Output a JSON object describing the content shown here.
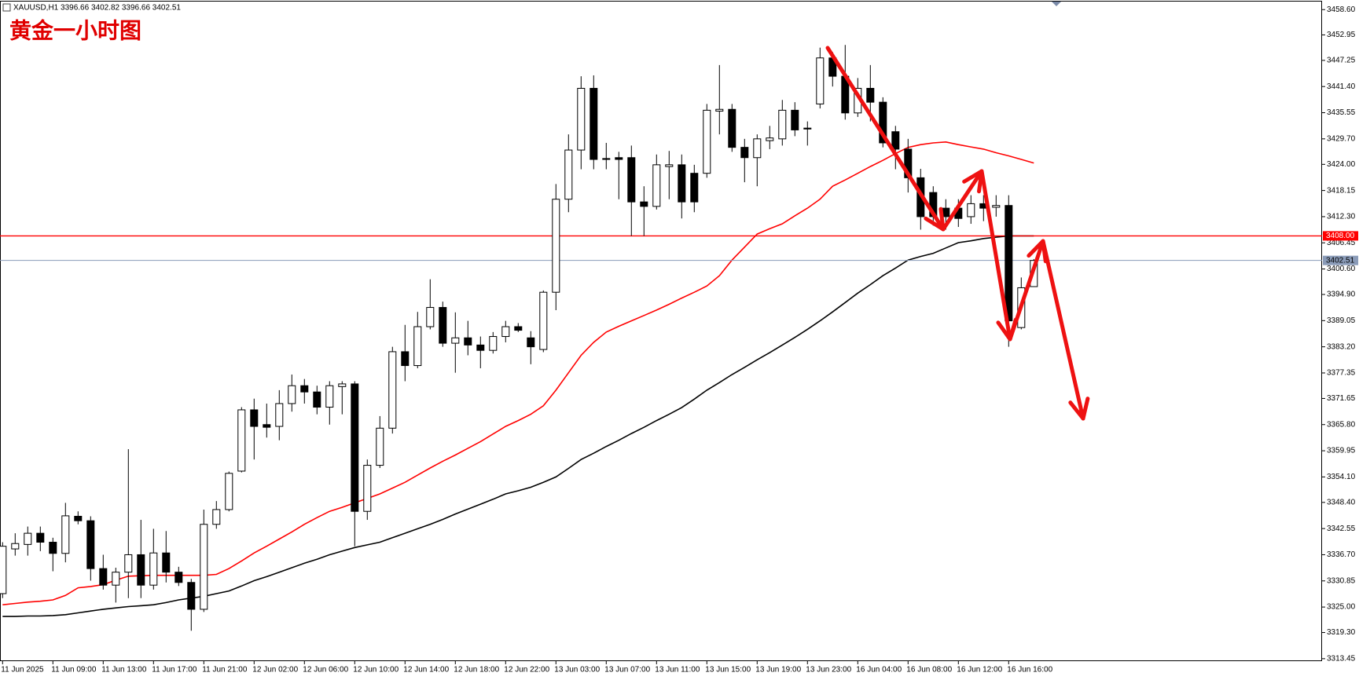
{
  "chart_data": {
    "type": "candlestick",
    "title": "黄金一小时图",
    "subtitle": "XAUUSD,H1  3396.66 3402.82 3396.66 3402.51",
    "categories": [
      "11 Jun 2025",
      null,
      null,
      null,
      "11 Jun 09:00",
      null,
      null,
      null,
      "11 Jun 13:00",
      null,
      null,
      null,
      "11 Jun 17:00",
      null,
      null,
      null,
      "11 Jun 21:00",
      null,
      null,
      null,
      "12 Jun 02:00",
      null,
      null,
      null,
      "12 Jun 06:00",
      null,
      null,
      null,
      "12 Jun 10:00",
      null,
      null,
      null,
      "12 Jun 14:00",
      null,
      null,
      null,
      "12 Jun 18:00",
      null,
      null,
      null,
      "12 Jun 22:00",
      null,
      null,
      null,
      "13 Jun 03:00",
      null,
      null,
      null,
      "13 Jun 07:00",
      null,
      null,
      null,
      "13 Jun 11:00",
      null,
      null,
      null,
      "13 Jun 15:00",
      null,
      null,
      null,
      "13 Jun 19:00",
      null,
      null,
      null,
      "13 Jun 23:00",
      null,
      null,
      null,
      "16 Jun 04:00",
      null,
      null,
      null,
      "16 Jun 08:00",
      null,
      null,
      null,
      "16 Jun 12:00",
      null,
      null,
      null,
      "16 Jun 16:00",
      null,
      null
    ],
    "open": [
      3328,
      3338,
      3339,
      3341.5,
      3339.5,
      3337,
      3345.3,
      3344.3,
      3333.6,
      3329.9,
      3332.8,
      3336.7,
      3329.9,
      3337.1,
      3332.8,
      3330.5,
      3324.5,
      3343.5,
      3346.8,
      3355.4,
      3369.1,
      3365.8,
      3365.4,
      3370.5,
      3374.5,
      3373.1,
      3369.7,
      3374.3,
      3374.9,
      3346.4,
      3356.7,
      3365,
      3382.1,
      3379,
      3387.7,
      3392,
      3384,
      3385.2,
      3383.6,
      3382.4,
      3385.5,
      3387.7,
      3385.2,
      3382.6,
      3395.4,
      3416.2,
      3427.2,
      3441,
      3425.3,
      3425.5,
      3425.5,
      3415.6,
      3414.6,
      3423.5,
      3423.9,
      3422,
      3422,
      3435.9,
      3436.3,
      3427.8,
      3425.5,
      3429.3,
      3429.7,
      3436.1,
      3432.1,
      3437.5,
      3447.8,
      3443.7,
      3435.5,
      3441,
      3437.9,
      3431.3,
      3427.4,
      3421,
      3417.7,
      3414.2,
      3414.2,
      3412.3,
      3415.2,
      3414.4,
      3414.8,
      3387.5,
      3396.66
    ],
    "high": [
      3339.5,
      3341.5,
      3343,
      3343,
      3340.5,
      3348.3,
      3346.4,
      3345.3,
      3336.7,
      3333.8,
      3360.3,
      3344.5,
      3342.5,
      3342,
      3334,
      3331.3,
      3346.8,
      3348.7,
      3355.3,
      3369.7,
      3371.6,
      3370.5,
      3373.5,
      3377,
      3376,
      3374.5,
      3375.5,
      3375.5,
      3375.5,
      3358,
      3367.7,
      3383.2,
      3388.1,
      3391,
      3398.3,
      3393.3,
      3390.9,
      3389,
      3385.5,
      3386.5,
      3389,
      3388.5,
      3386.7,
      3395.8,
      3419.6,
      3430.7,
      3443.7,
      3443.9,
      3428.8,
      3426.8,
      3428.2,
      3419.1,
      3426.2,
      3427,
      3426.2,
      3423.9,
      3437.5,
      3446.2,
      3437.5,
      3429.7,
      3430.7,
      3432.6,
      3438.4,
      3437.9,
      3433.6,
      3450.1,
      3449.1,
      3450.7,
      3443.3,
      3446.2,
      3439,
      3432.6,
      3429.7,
      3423,
      3419.1,
      3416.2,
      3416.2,
      3417.1,
      3417.1,
      3417.1,
      3417.1,
      3398.7,
      3402.82
    ],
    "low": [
      3327,
      3336.5,
      3336.5,
      3337.5,
      3333,
      3335,
      3343.5,
      3330.9,
      3328.9,
      3326,
      3327,
      3327,
      3328.9,
      3330.5,
      3329.7,
      3319.7,
      3323.9,
      3342.5,
      3346.4,
      3355.1,
      3358,
      3362.9,
      3362.3,
      3368.7,
      3370.5,
      3368.1,
      3365.8,
      3368.1,
      3338.6,
      3344.5,
      3356.1,
      3363.8,
      3375.5,
      3378.4,
      3387.1,
      3383.2,
      3377.4,
      3381.3,
      3378.4,
      3381.7,
      3384.2,
      3386.5,
      3379.3,
      3382,
      3391.4,
      3413.3,
      3422.9,
      3422.9,
      3422.9,
      3416.2,
      3408,
      3408,
      3413.9,
      3416.2,
      3411.9,
      3413.3,
      3421,
      3430.7,
      3426.8,
      3420,
      3419.1,
      3427.4,
      3428.2,
      3430.3,
      3428.2,
      3436.5,
      3441.4,
      3434,
      3434.6,
      3433.6,
      3427.8,
      3422.9,
      3417.7,
      3409.4,
      3410.3,
      3409.4,
      3410,
      3410.7,
      3411.3,
      3412.3,
      3383.2,
      3387.1,
      3396.66
    ],
    "close": [
      3338.6,
      3339.2,
      3341.5,
      3339.5,
      3337,
      3345.4,
      3344.3,
      3333.6,
      3329.9,
      3332.8,
      3336.7,
      3329.9,
      3337.1,
      3332.8,
      3330.5,
      3324.5,
      3343.5,
      3346.8,
      3354.9,
      3369.1,
      3365.4,
      3365.2,
      3370.5,
      3374.5,
      3373.1,
      3369.7,
      3374.5,
      3374.9,
      3346.4,
      3356.7,
      3365,
      3382.1,
      3379,
      3387.7,
      3392,
      3384,
      3385.2,
      3383.6,
      3382.4,
      3385.5,
      3387.7,
      3386.9,
      3383.2,
      3395.4,
      3416.2,
      3427.2,
      3441,
      3425.1,
      3425.1,
      3425.1,
      3415.6,
      3414.6,
      3423.9,
      3423.9,
      3415.6,
      3415.6,
      3436.1,
      3436.3,
      3427.8,
      3425.5,
      3429.7,
      3429.9,
      3436.1,
      3431.7,
      3431.9,
      3447.8,
      3443.7,
      3435.5,
      3441,
      3437.9,
      3428.8,
      3427.4,
      3421,
      3412.3,
      3412.3,
      3412.3,
      3411.9,
      3415.2,
      3414.2,
      3414.8,
      3389,
      3396.4,
      3402.51
    ],
    "up_color": "#ffffff",
    "down_color": "#000000",
    "overlays": [
      {
        "color": "#ff0000",
        "values": [
          3325.5,
          3325.8,
          3326.1,
          3326.3,
          3326.6,
          3327.6,
          3329.3,
          3329.6,
          3330.0,
          3331.0,
          3331.9,
          3332.0,
          3332.1,
          3332.1,
          3332.1,
          3332.1,
          3332.1,
          3332.3,
          3333.6,
          3335.3,
          3337.1,
          3338.6,
          3340.2,
          3341.8,
          3343.5,
          3345.0,
          3346.4,
          3347.3,
          3348.3,
          3349.3,
          3350.3,
          3351.6,
          3352.9,
          3354.5,
          3356.1,
          3357.6,
          3359.0,
          3360.5,
          3362.0,
          3363.7,
          3365.4,
          3366.7,
          3368.1,
          3370.0,
          3373.5,
          3377.4,
          3381.3,
          3384.2,
          3386.5,
          3387.8,
          3389.0,
          3390.2,
          3391.4,
          3392.7,
          3394.1,
          3395.4,
          3396.8,
          3399.1,
          3402.6,
          3405.5,
          3408.4,
          3409.6,
          3410.7,
          3412.5,
          3414.2,
          3416.2,
          3419.1,
          3420.5,
          3422.0,
          3423.5,
          3424.9,
          3426.4,
          3427.8,
          3428.4,
          3428.8,
          3429.0,
          3428.4,
          3427.9,
          3427.4,
          3426.6,
          3425.9,
          3425.1,
          3424.3
        ]
      },
      {
        "color": "#000000",
        "values": [
          3322.9,
          3322.9,
          3323.0,
          3323.0,
          3323.1,
          3323.3,
          3323.7,
          3324.1,
          3324.5,
          3324.8,
          3325.1,
          3325.3,
          3325.5,
          3326.0,
          3326.6,
          3327.0,
          3327.4,
          3328.0,
          3328.6,
          3329.7,
          3330.9,
          3331.8,
          3332.8,
          3333.8,
          3334.8,
          3335.7,
          3336.7,
          3337.5,
          3338.3,
          3338.9,
          3339.5,
          3340.5,
          3341.5,
          3342.5,
          3343.5,
          3344.6,
          3345.8,
          3346.9,
          3348.0,
          3349.1,
          3350.3,
          3351.0,
          3351.8,
          3352.9,
          3354.1,
          3356.0,
          3358.0,
          3359.4,
          3360.9,
          3362.3,
          3363.8,
          3365.2,
          3366.7,
          3368.1,
          3369.6,
          3371.5,
          3373.5,
          3375.2,
          3377.0,
          3378.6,
          3380.3,
          3381.9,
          3383.6,
          3385.3,
          3387.1,
          3389.0,
          3391.0,
          3393.1,
          3395.2,
          3397.1,
          3399.1,
          3400.8,
          3402.6,
          3403.4,
          3404.1,
          3405.3,
          3406.5,
          3406.9,
          3407.4,
          3407.7,
          3408.0,
          3408.0,
          3408.0
        ]
      }
    ],
    "hlines": [
      {
        "value": 3408.0,
        "label": "3408.00",
        "color": "#ff0000"
      },
      {
        "value": 3402.51,
        "label": "3402.51",
        "color": "#8a9bb8"
      }
    ],
    "ylim": [
      3312.9,
      3460.4
    ],
    "yticks": [
      {
        "value": 3458.6,
        "label": "3458.60"
      },
      {
        "value": 3452.95,
        "label": "3452.95"
      },
      {
        "value": 3447.25,
        "label": "3447.25"
      },
      {
        "value": 3441.4,
        "label": "3441.40"
      },
      {
        "value": 3435.55,
        "label": "3435.55"
      },
      {
        "value": 3429.7,
        "label": "3429.70"
      },
      {
        "value": 3424,
        "label": "3424.00"
      },
      {
        "value": 3418.15,
        "label": "3418.15"
      },
      {
        "value": 3412.3,
        "label": "3412.30"
      },
      {
        "value": 3406.45,
        "label": "3406.45"
      },
      {
        "value": 3400.6,
        "label": "3400.60"
      },
      {
        "value": 3394.9,
        "label": "3394.90"
      },
      {
        "value": 3389.05,
        "label": "3389.05"
      },
      {
        "value": 3383.2,
        "label": "3383.20"
      },
      {
        "value": 3377.35,
        "label": "3377.35"
      },
      {
        "value": 3371.65,
        "label": "3371.65"
      },
      {
        "value": 3365.8,
        "label": "3365.80"
      },
      {
        "value": 3359.95,
        "label": "3359.95"
      },
      {
        "value": 3354.1,
        "label": "3354.10"
      },
      {
        "value": 3348.4,
        "label": "3348.40"
      },
      {
        "value": 3342.55,
        "label": "3342.55"
      },
      {
        "value": 3336.7,
        "label": "3336.70"
      },
      {
        "value": 3330.85,
        "label": "3330.85"
      },
      {
        "value": 3325,
        "label": "3325.00"
      },
      {
        "value": 3319.3,
        "label": "3319.30"
      },
      {
        "value": 3313.45,
        "label": "3313.45"
      }
    ],
    "grid": false
  }
}
